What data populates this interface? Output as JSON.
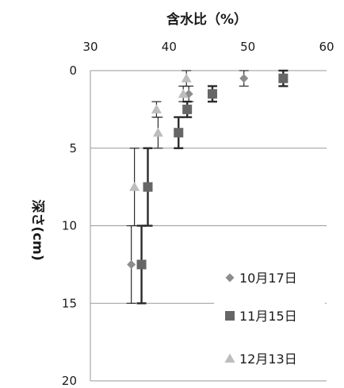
{
  "chart_data": {
    "type": "scatter",
    "title": "",
    "xlabel": "含水比（%）",
    "ylabel": "深さ(cm)",
    "xlim": [
      30,
      60
    ],
    "ylim": [
      0,
      20
    ],
    "y_inverted": true,
    "x_axis_position": "top",
    "xticks": [
      "30",
      "40",
      "50",
      "60"
    ],
    "yticks": [
      "0",
      "5",
      "10",
      "15",
      "20"
    ],
    "grid": "horizontal",
    "legend_position": "bottom-right",
    "series": [
      {
        "name": "10月17日",
        "marker": "diamond",
        "color": "#8c8c8c",
        "points": [
          {
            "x": 49.5,
            "y": 0.5,
            "err": 0.5
          },
          {
            "x": 42.5,
            "y": 1.5,
            "err": 0.5
          },
          {
            "x": 35.2,
            "y": 12.5,
            "err": 2.5
          }
        ]
      },
      {
        "name": "11月15日",
        "marker": "square",
        "color": "#666666",
        "points": [
          {
            "x": 54.5,
            "y": 0.5,
            "err": 0.5
          },
          {
            "x": 45.5,
            "y": 1.5,
            "err": 0.5
          },
          {
            "x": 42.3,
            "y": 2.5,
            "err": 0.5
          },
          {
            "x": 41.2,
            "y": 4.0,
            "err": 1.0
          },
          {
            "x": 37.3,
            "y": 7.5,
            "err": 2.5
          },
          {
            "x": 36.5,
            "y": 12.5,
            "err": 2.5
          }
        ]
      },
      {
        "name": "12月13日",
        "marker": "triangle",
        "color": "#bdbdbd",
        "points": [
          {
            "x": 42.2,
            "y": 0.5,
            "err": 0.5
          },
          {
            "x": 41.8,
            "y": 1.5,
            "err": 0.5
          },
          {
            "x": 38.4,
            "y": 2.5,
            "err": 0.5
          },
          {
            "x": 38.6,
            "y": 4.0,
            "err": 1.0
          },
          {
            "x": 35.6,
            "y": 7.5,
            "err": 2.5
          }
        ]
      }
    ]
  }
}
